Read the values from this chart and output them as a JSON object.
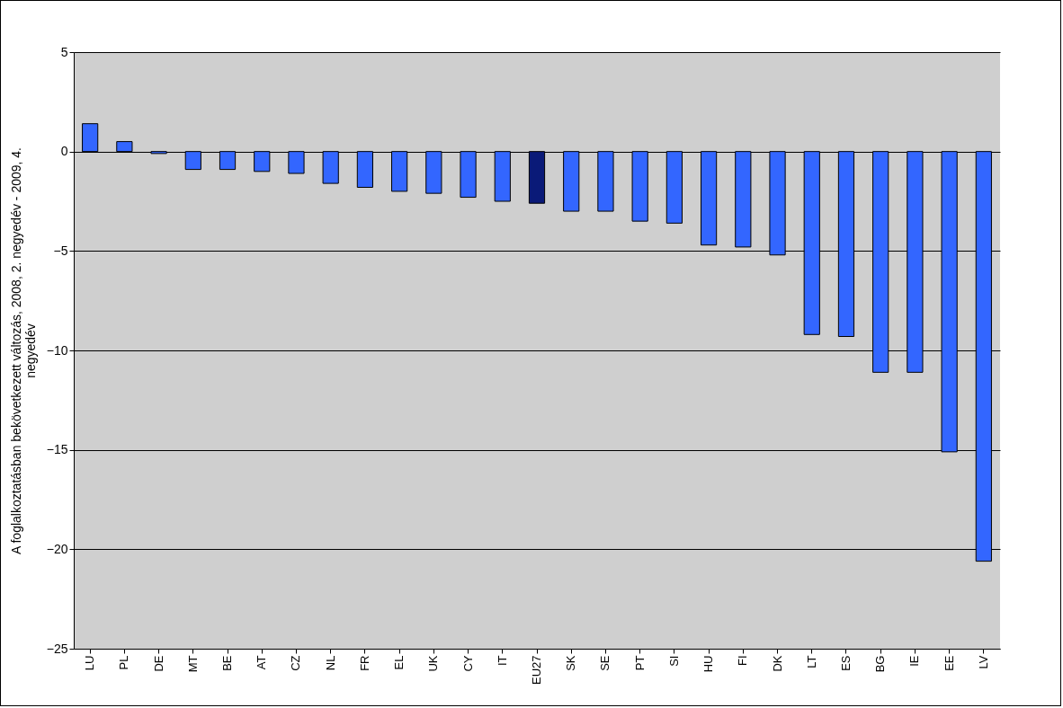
{
  "chart_data": {
    "type": "bar",
    "ylabel": "A foglalkoztatásban bekövetkezett változás, 2008, 2. negyedév - 2009, 4. negyedév",
    "categories": [
      "LU",
      "PL",
      "DE",
      "MT",
      "BE",
      "AT",
      "CZ",
      "NL",
      "FR",
      "EL",
      "UK",
      "CY",
      "IT",
      "EU27",
      "SK",
      "SE",
      "PT",
      "SI",
      "HU",
      "FI",
      "DK",
      "LT",
      "ES",
      "BG",
      "IE",
      "EE",
      "LV"
    ],
    "values": [
      1.4,
      0.5,
      -0.1,
      -0.9,
      -0.9,
      -1.0,
      -1.1,
      -1.6,
      -1.8,
      -2.0,
      -2.1,
      -2.3,
      -2.5,
      -2.6,
      -3.0,
      -3.0,
      -3.5,
      -3.6,
      -4.7,
      -4.8,
      -5.2,
      -9.2,
      -9.3,
      -11.1,
      -11.1,
      -15.1,
      -20.6
    ],
    "colors": [
      "#3366ff",
      "#3366ff",
      "#3366ff",
      "#3366ff",
      "#3366ff",
      "#3366ff",
      "#3366ff",
      "#3366ff",
      "#3366ff",
      "#3366ff",
      "#3366ff",
      "#3366ff",
      "#3366ff",
      "#0a1a78",
      "#3366ff",
      "#3366ff",
      "#3366ff",
      "#3366ff",
      "#3366ff",
      "#3366ff",
      "#3366ff",
      "#3366ff",
      "#3366ff",
      "#3366ff",
      "#3366ff",
      "#3366ff",
      "#3366ff"
    ],
    "ylim": [
      -25,
      5
    ],
    "yticks": [
      -25,
      -20,
      -15,
      -10,
      -5,
      0,
      5
    ],
    "grid": "y"
  }
}
